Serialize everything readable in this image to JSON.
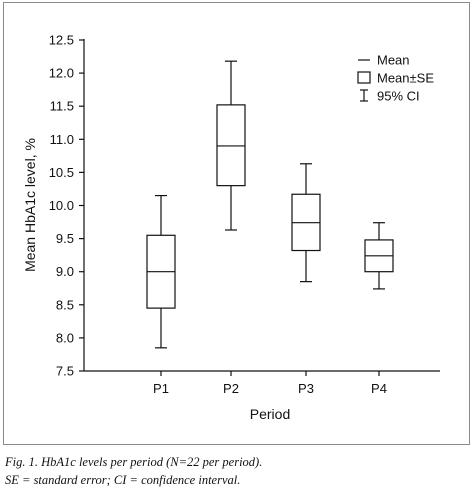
{
  "chart_data": {
    "type": "box",
    "xlabel": "Period",
    "ylabel": "Mean HbA1c level, %",
    "ylim": [
      7.5,
      12.5
    ],
    "yticks": [
      "7.5",
      "8.0",
      "8.5",
      "9.0",
      "9.5",
      "10.0",
      "10.5",
      "11.0",
      "11.5",
      "12.0",
      "12.5"
    ],
    "ytick_values": [
      7.5,
      8.0,
      8.5,
      9.0,
      9.5,
      10.0,
      10.5,
      11.0,
      11.5,
      12.0,
      12.5
    ],
    "categories": [
      "P1",
      "P2",
      "P3",
      "P4"
    ],
    "series": [
      {
        "category": "P1",
        "mean": 9.0,
        "se_low": 8.45,
        "se_high": 9.55,
        "ci_low": 7.85,
        "ci_high": 10.15
      },
      {
        "category": "P2",
        "mean": 10.9,
        "se_low": 10.3,
        "se_high": 11.52,
        "ci_low": 9.63,
        "ci_high": 12.18
      },
      {
        "category": "P3",
        "mean": 9.74,
        "se_low": 9.32,
        "se_high": 10.17,
        "ci_low": 8.85,
        "ci_high": 10.63
      },
      {
        "category": "P4",
        "mean": 9.24,
        "se_low": 9.0,
        "se_high": 9.48,
        "ci_low": 8.74,
        "ci_high": 9.74
      }
    ],
    "legend": {
      "position": "top-right",
      "entries": [
        "Mean",
        "Mean±SE",
        "95% CI"
      ]
    },
    "grid": false
  },
  "caption": {
    "line1": "Fig. 1. HbA1c levels per period (N=22 per period).",
    "line2": "SE = standard error; CI = confidence interval."
  }
}
